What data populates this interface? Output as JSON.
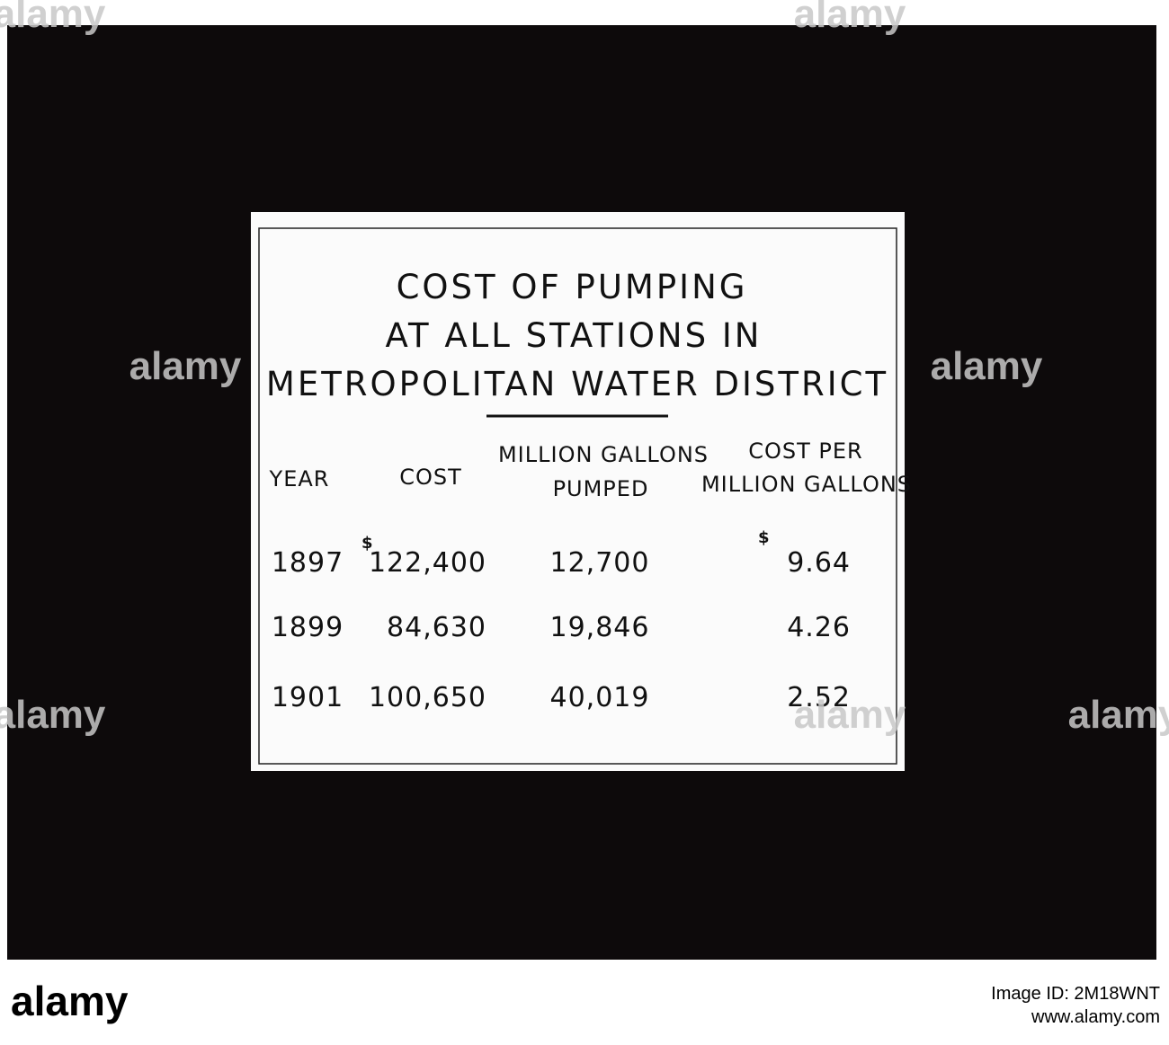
{
  "slide": {
    "title_lines": [
      "COST OF PUMPING",
      "AT ALL STATIONS IN",
      "METROPOLITAN WATER DISTRICT"
    ]
  },
  "table": {
    "headers": [
      [
        "YEAR"
      ],
      [
        "COST"
      ],
      [
        "MILLION GALLONS",
        "PUMPED"
      ],
      [
        "COST PER",
        "MILLION GALLONS"
      ]
    ],
    "currency": "$",
    "rows": [
      [
        "1897",
        "122,400",
        "12,700",
        "9.64"
      ],
      [
        "1899",
        "84,630",
        "19,846",
        "4.26"
      ],
      [
        "1901",
        "100,650",
        "40,019",
        "2.52"
      ]
    ]
  },
  "watermark": "alamy",
  "footer": {
    "logo": "alamy",
    "image_id": "Image ID: 2M18WNT",
    "url": "www.alamy.com"
  }
}
